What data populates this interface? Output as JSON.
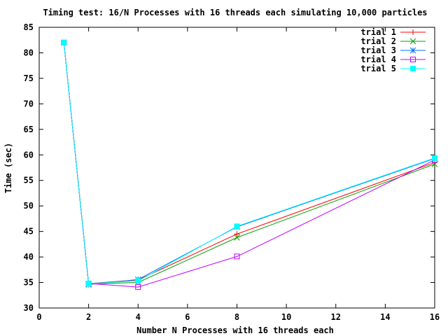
{
  "chart_data": {
    "type": "line",
    "title": "Timing test: 16/N Processes with 16 threads each simulating 10,000 particles",
    "xlabel": "Number N Processes with 16 threads each",
    "ylabel": "Time (sec)",
    "xlim": [
      0,
      16
    ],
    "ylim": [
      30,
      85
    ],
    "xticks": [
      0,
      2,
      4,
      6,
      8,
      10,
      12,
      14,
      16
    ],
    "yticks": [
      30,
      35,
      40,
      45,
      50,
      55,
      60,
      65,
      70,
      75,
      80,
      85
    ],
    "grid": false,
    "legend_position": "top-right",
    "x": [
      1,
      2,
      4,
      8,
      16
    ],
    "series": [
      {
        "name": "trial 1",
        "color": "#ff0000",
        "marker": "plus",
        "values": [
          82.0,
          34.8,
          35.5,
          44.5,
          58.5
        ]
      },
      {
        "name": "trial 2",
        "color": "#00a000",
        "marker": "cross",
        "values": [
          82.0,
          34.7,
          35.0,
          43.8,
          58.2
        ]
      },
      {
        "name": "trial 3",
        "color": "#0070ff",
        "marker": "star",
        "values": [
          82.0,
          34.6,
          35.6,
          45.9,
          59.3
        ]
      },
      {
        "name": "trial 4",
        "color": "#c000ff",
        "marker": "open-square",
        "values": [
          82.0,
          34.8,
          34.1,
          40.1,
          59.0
        ]
      },
      {
        "name": "trial 5",
        "color": "#00ffff",
        "marker": "filled-square",
        "values": [
          82.0,
          34.8,
          35.3,
          46.0,
          59.4
        ]
      }
    ]
  }
}
